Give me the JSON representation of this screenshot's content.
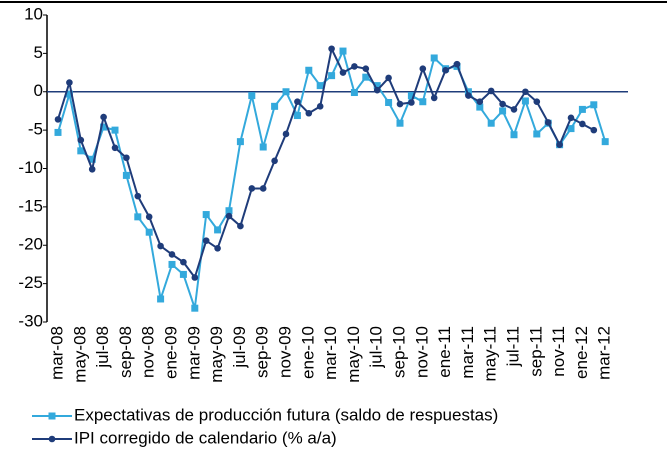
{
  "chart_data": {
    "type": "line",
    "categories": [
      "mar-08",
      null,
      "may-08",
      null,
      "jul-08",
      null,
      "sep-08",
      null,
      "nov-08",
      null,
      "ene-09",
      null,
      "mar-09",
      null,
      "may-09",
      null,
      "jul-09",
      null,
      "sep-09",
      null,
      "nov-09",
      null,
      "ene-10",
      null,
      "mar-10",
      null,
      "may-10",
      null,
      "jul-10",
      null,
      "sep-10",
      null,
      "nov-10",
      null,
      "ene-11",
      null,
      "mar-11",
      null,
      "may-11",
      null,
      "jul-11",
      null,
      "sep-11",
      null,
      "nov-11",
      null,
      "ene-12",
      null,
      "mar-12"
    ],
    "series": [
      {
        "name": "Expectativas de producción futura (saldo de respuestas)",
        "color": "#33a9dc",
        "marker": "square",
        "values": [
          -5.3,
          -0.3,
          -7.7,
          -8.8,
          -4.6,
          -5,
          -10.9,
          -16.3,
          -18.3,
          -27,
          -22.5,
          -23.8,
          -28.2,
          -16,
          -18,
          -15.5,
          -6.5,
          -0.5,
          -7.2,
          -1.9,
          0,
          -3.1,
          2.8,
          0.8,
          2.1,
          5.3,
          -0.1,
          1.9,
          0.8,
          -1.4,
          -4.1,
          -0.5,
          -1.3,
          4.4,
          3,
          3.3,
          0,
          -2,
          -4.1,
          -2.5,
          -5.6,
          -1.2,
          -5.5,
          -4.1,
          -6.9,
          -4.8,
          -2.3,
          -1.7,
          -6.5
        ]
      },
      {
        "name": "IPI corregido de calendario (% a/a)",
        "color": "#1f3c7a",
        "marker": "circle",
        "values": [
          -3.6,
          1.2,
          -6.3,
          -10.1,
          -3.3,
          -7.3,
          -8.6,
          -13.6,
          -16.3,
          -20.1,
          -21.2,
          -22.2,
          -24.2,
          -19.4,
          -20.4,
          -16.2,
          -17.5,
          -12.6,
          -12.6,
          -9,
          -5.5,
          -1.3,
          -2.8,
          -1.9,
          5.6,
          2.5,
          3.3,
          3,
          0.2,
          1.8,
          -1.6,
          -1.4,
          3,
          -0.8,
          2.8,
          3.6,
          -0.5,
          -1.3,
          0.1,
          -1.6,
          -2.3,
          0,
          -1.3,
          -4,
          -6.9,
          -3.4,
          -4.2,
          -5,
          null
        ]
      }
    ],
    "ylim": [
      -30,
      10
    ],
    "yticks": [
      10,
      5,
      0,
      -5,
      -10,
      -15,
      -20,
      -25,
      -30
    ]
  }
}
